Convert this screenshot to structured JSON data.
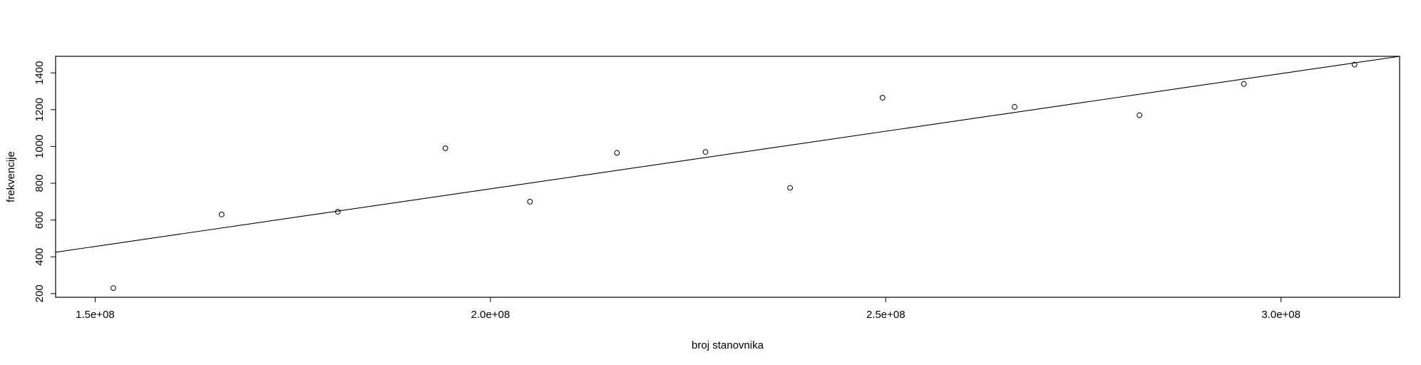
{
  "chart_data": {
    "type": "scatter",
    "title": "",
    "xlabel": "broj stanovnika",
    "ylabel": "frekvencije",
    "xlim": [
      145000000,
      315000000
    ],
    "ylim": [
      180000000,
      0
    ],
    "x_ticks": [
      {
        "value": 150000000,
        "label": "1.5e+08"
      },
      {
        "value": 200000000,
        "label": "2.0e+08"
      },
      {
        "value": 250000000,
        "label": "2.5e+08"
      },
      {
        "value": 300000000,
        "label": "3.0e+08"
      }
    ],
    "y_range": [
      180,
      1490
    ],
    "y_ticks": [
      {
        "value": 200,
        "label": "200"
      },
      {
        "value": 400,
        "label": "400"
      },
      {
        "value": 600,
        "label": "600"
      },
      {
        "value": 800,
        "label": "800"
      },
      {
        "value": 1000,
        "label": "1000"
      },
      {
        "value": 1200,
        "label": "1200"
      },
      {
        "value": 1400,
        "label": "1400"
      }
    ],
    "points": [
      {
        "x": 152300000,
        "y": 230
      },
      {
        "x": 166000000,
        "y": 630
      },
      {
        "x": 180700000,
        "y": 645
      },
      {
        "x": 194300000,
        "y": 990
      },
      {
        "x": 205000000,
        "y": 700
      },
      {
        "x": 216000000,
        "y": 965
      },
      {
        "x": 227200000,
        "y": 970
      },
      {
        "x": 237900000,
        "y": 775
      },
      {
        "x": 249600000,
        "y": 1265
      },
      {
        "x": 266300000,
        "y": 1215
      },
      {
        "x": 282100000,
        "y": 1170
      },
      {
        "x": 295300000,
        "y": 1340
      },
      {
        "x": 309300000,
        "y": 1445
      }
    ],
    "regression_line": {
      "x": [
        145000000,
        315000000
      ],
      "y": [
        425,
        1490
      ]
    },
    "grid": false,
    "legend": "none"
  }
}
